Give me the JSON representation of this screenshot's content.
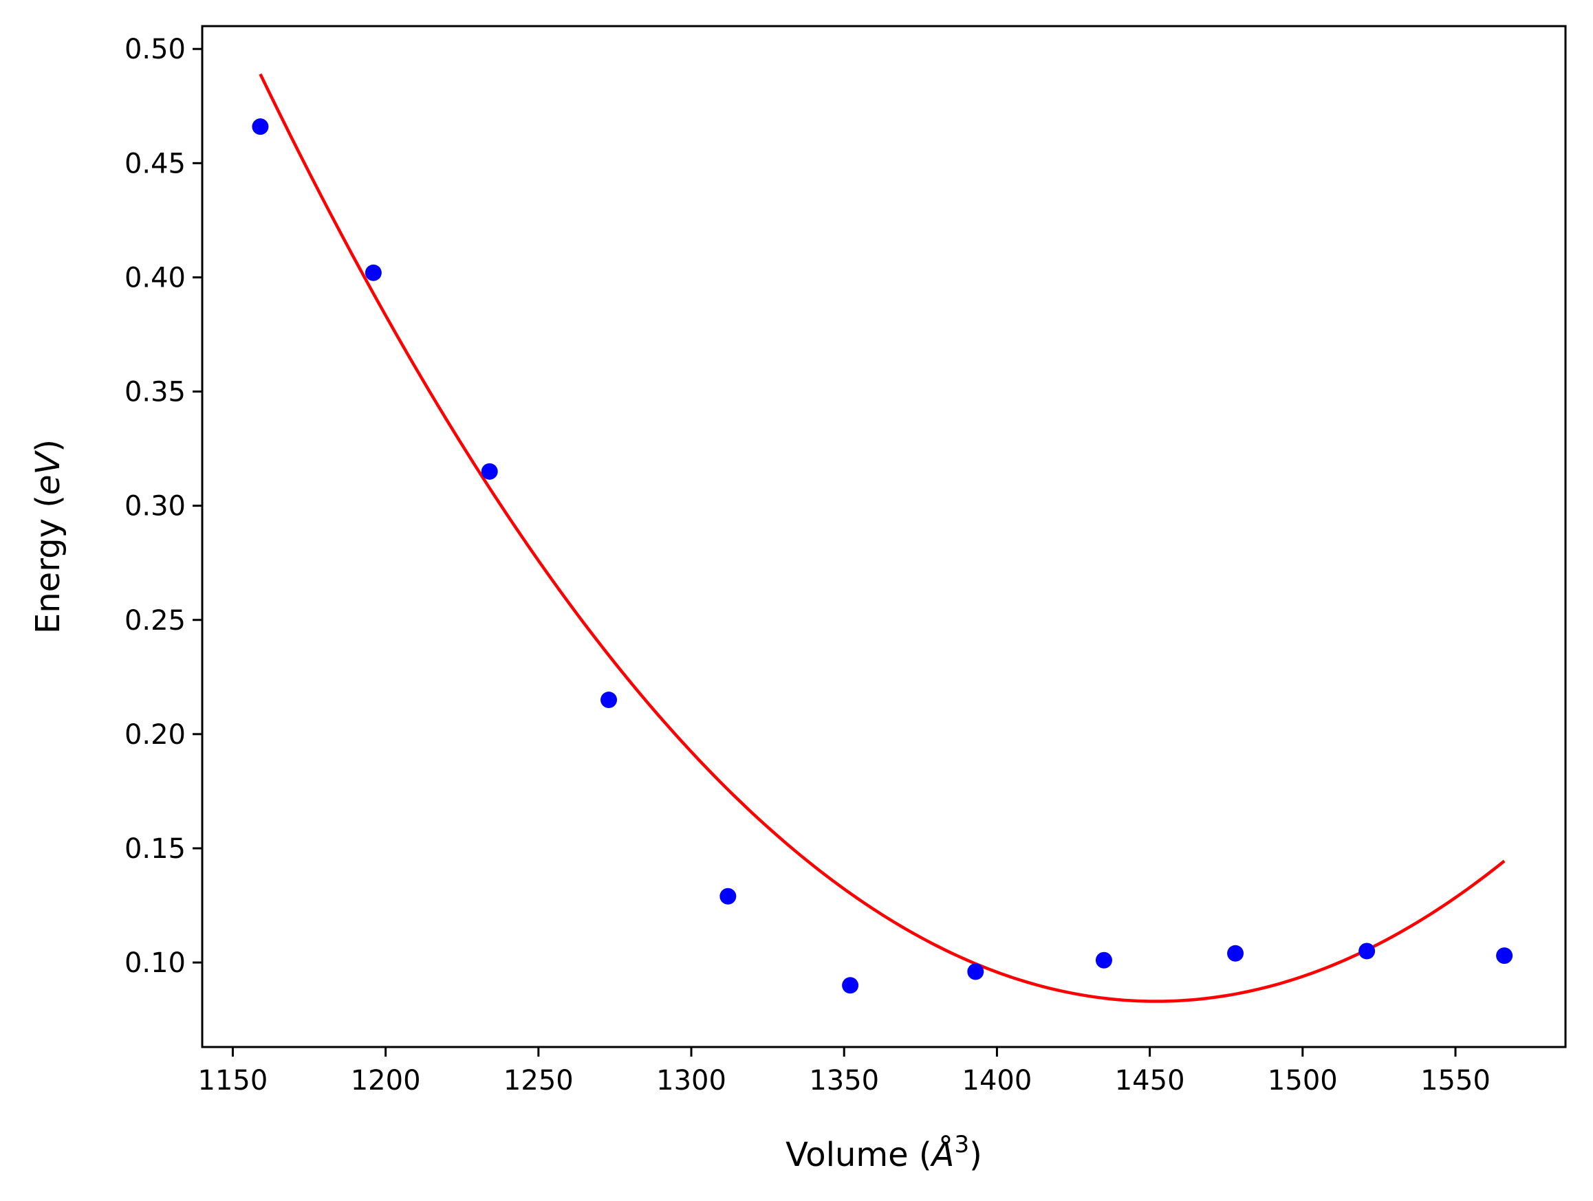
{
  "chart_data": {
    "type": "scatter",
    "xlabel": {
      "pre": "Volume (",
      "sym": "Å",
      "sup": "3",
      "post": ")"
    },
    "ylabel": {
      "pre": "Energy (",
      "sym": "eV",
      "post": ")"
    },
    "xlim": [
      1140,
      1586
    ],
    "ylim": [
      0.063,
      0.51
    ],
    "xticks": [
      1150,
      1200,
      1250,
      1300,
      1350,
      1400,
      1450,
      1500,
      1550
    ],
    "xtick_labels": [
      "1150",
      "1200",
      "1250",
      "1300",
      "1350",
      "1400",
      "1450",
      "1500",
      "1550"
    ],
    "yticks": [
      0.1,
      0.15,
      0.2,
      0.25,
      0.3,
      0.35,
      0.4,
      0.45,
      0.5
    ],
    "ytick_labels": [
      "0.10",
      "0.15",
      "0.20",
      "0.25",
      "0.30",
      "0.35",
      "0.40",
      "0.45",
      "0.50"
    ],
    "grid": false,
    "series": [
      {
        "kind": "points",
        "color": "#0000ff",
        "x": [
          1159,
          1196,
          1234,
          1273,
          1312,
          1352,
          1393,
          1435,
          1478,
          1521,
          1566
        ],
        "y": [
          0.466,
          0.402,
          0.315,
          0.215,
          0.129,
          0.09,
          0.096,
          0.101,
          0.104,
          0.105,
          0.103
        ]
      },
      {
        "kind": "fit-curve",
        "color": "#ff0000",
        "fit": "quadratic",
        "x_range": [
          1159,
          1566
        ],
        "vertex": [
          1452,
          0.083
        ],
        "y_at_start": 0.489
      }
    ]
  }
}
